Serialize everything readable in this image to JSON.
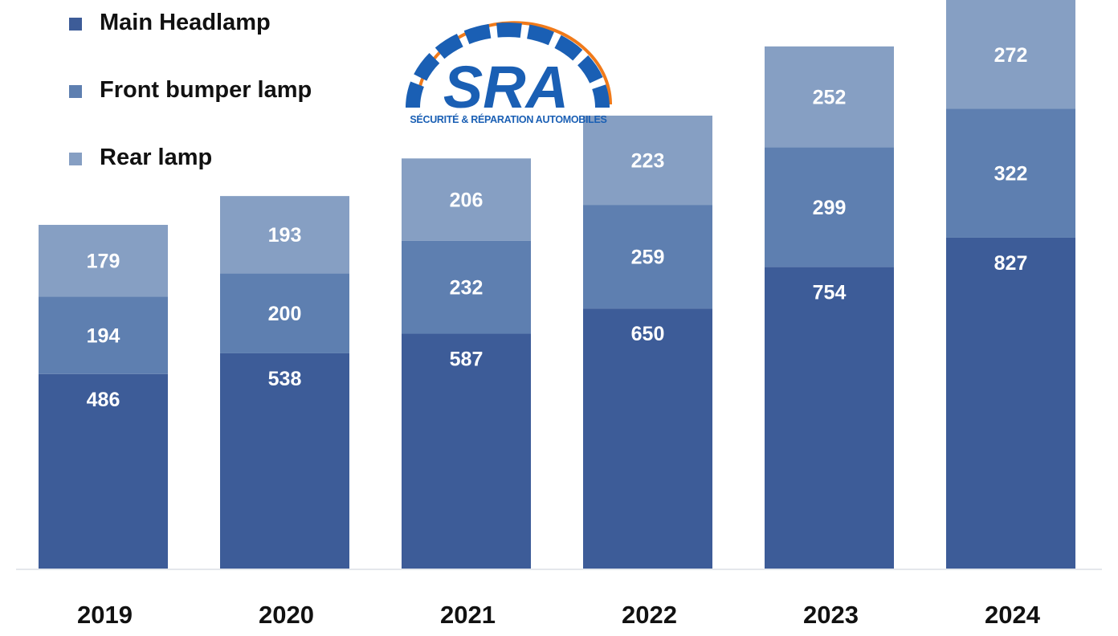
{
  "colors": {
    "main_headlamp": "#3d5c98",
    "front_bumper_lamp": "#5e7fb0",
    "rear_lamp": "#869fc3",
    "data_label": "#ffffff",
    "axis_label": "#111111",
    "logo_blue": "#1a5fb4",
    "logo_orange": "#f07a1a"
  },
  "legend": {
    "items": [
      {
        "label": "Main Headlamp",
        "color": "#3d5c98"
      },
      {
        "label": "Front bumper lamp",
        "color": "#5e7fb0"
      },
      {
        "label": "Rear lamp",
        "color": "#869fc3"
      }
    ]
  },
  "logo": {
    "wordmark": "SRA",
    "tagline": "SÉCURITÉ & RÉPARATION AUTOMOBILES"
  },
  "chart_data": {
    "type": "bar",
    "stacked": true,
    "categories": [
      "2019",
      "2020",
      "2021",
      "2022",
      "2023",
      "2024"
    ],
    "series": [
      {
        "name": "Main Headlamp",
        "values": [
          486,
          538,
          587,
          650,
          754,
          827
        ]
      },
      {
        "name": "Front bumper lamp",
        "values": [
          194,
          200,
          232,
          259,
          299,
          322
        ]
      },
      {
        "name": "Rear lamp",
        "values": [
          179,
          193,
          206,
          223,
          252,
          272
        ]
      }
    ],
    "data_labels": true,
    "title": "",
    "xlabel": "",
    "ylabel": "",
    "ylim": [
      0,
      1421
    ],
    "grid": false,
    "legend_position": "top-left"
  }
}
